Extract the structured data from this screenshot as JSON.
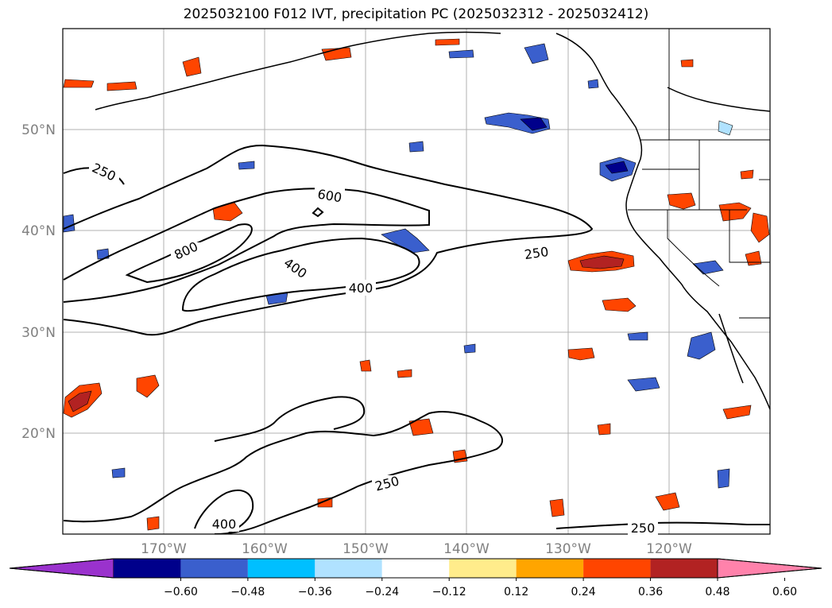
{
  "title": "2025032100 F012 IVT, precipitation PC (2025032312 - 2025032412)",
  "map": {
    "lat_labels": [
      "50°N",
      "40°N",
      "30°N",
      "20°N"
    ],
    "lon_labels": [
      "170°W",
      "160°W",
      "150°W",
      "140°W",
      "130°W",
      "120°W"
    ],
    "contour_labels": [
      {
        "text": "250"
      },
      {
        "text": "600"
      },
      {
        "text": "800"
      },
      {
        "text": "400"
      },
      {
        "text": "400"
      },
      {
        "text": "250"
      },
      {
        "text": "250"
      },
      {
        "text": "400"
      },
      {
        "text": "250"
      }
    ]
  },
  "colorbar": {
    "ticks": [
      "−0.60",
      "−0.48",
      "−0.36",
      "−0.24",
      "−0.12",
      "0.12",
      "0.24",
      "0.36",
      "0.48",
      "0.60"
    ],
    "colors": [
      "#9a32cd",
      "#00008b",
      "#3a5fcd",
      "#00bfff",
      "#b0e2ff",
      "#ffffff",
      "#ffec8b",
      "#ffa500",
      "#ff4500",
      "#b22222",
      "#ff82ab"
    ]
  }
}
